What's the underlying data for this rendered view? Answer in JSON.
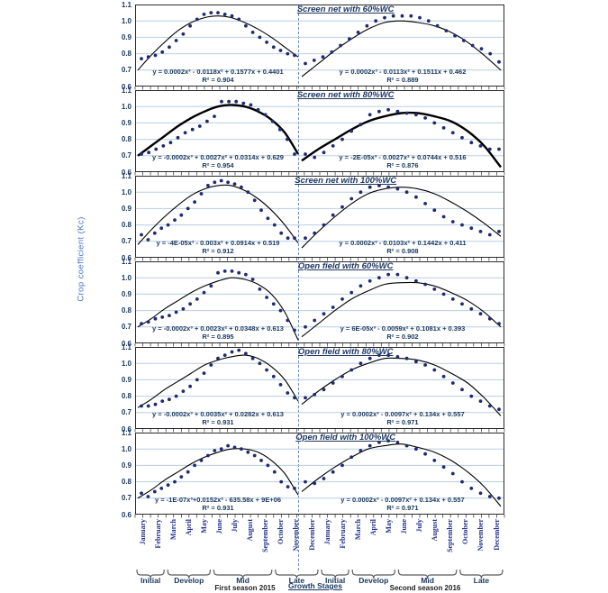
{
  "figure": {
    "y_axis_label": "Crop coefficient (Kc)",
    "y_ticks": [
      "1.1",
      "1.0",
      "0.9",
      "0.8",
      "0.7",
      "0.6"
    ],
    "months": [
      "January",
      "February",
      "March",
      "April",
      "May",
      "June",
      "July",
      "August",
      "September",
      "October",
      "November",
      "December"
    ],
    "growth_stages_label": "Growth Stages",
    "season1_caption": "First season 2015",
    "season2_caption": "Second season 2016",
    "stages": [
      {
        "label": "Initial",
        "season": 1,
        "from": 0,
        "to": 2
      },
      {
        "label": "Develop",
        "season": 1,
        "from": 2,
        "to": 5
      },
      {
        "label": "Mid",
        "season": 1,
        "from": 5,
        "to": 9
      },
      {
        "label": "Late",
        "season": 1,
        "from": 9,
        "to": 12
      },
      {
        "label": "Initial",
        "season": 2,
        "from": 12,
        "to": 14
      },
      {
        "label": "Develop",
        "season": 2,
        "from": 14,
        "to": 17
      },
      {
        "label": "Mid",
        "season": 2,
        "from": 17,
        "to": 21
      },
      {
        "label": "Late",
        "season": 2,
        "from": 21,
        "to": 24
      }
    ]
  },
  "colors": {
    "point": "#1F2A70",
    "curve": "#000000",
    "grid": "#B9CDE5",
    "panel_border": "#2B2B2B",
    "dashed_divider": "#6E89B8",
    "title_text": "#1F3864",
    "equation_text": "#17375E",
    "month_text": "#23318F",
    "tick_text": "#17375E",
    "stage_text": "#17375E",
    "caption_text": "#1F1F1F",
    "axis_label_text": "#4472C4",
    "bracket": "#595959"
  },
  "chart_data": [
    {
      "type": "scatter",
      "title": "Screen net with 60%WC",
      "ylim": [
        0.6,
        1.1
      ],
      "thick_curve": false,
      "fit_left": {
        "equation": "y = 0.0002x³ - 0.0118x² + 0.1577x + 0.4401",
        "r2": "R² = 0.904",
        "curve": [
          0.7,
          0.79,
          0.87,
          0.94,
          0.99,
          1.02,
          1.03,
          1.02,
          0.99,
          0.95,
          0.9,
          0.84,
          0.78
        ]
      },
      "fit_right": {
        "equation": "y = 0.0002x³ - 0.0113x² + 0.1511x + 0.462",
        "r2": "R² = 0.889",
        "curve": [
          0.66,
          0.74,
          0.82,
          0.89,
          0.95,
          0.99,
          1.0,
          0.99,
          0.97,
          0.93,
          0.87,
          0.79,
          0.7
        ]
      },
      "series": [
        {
          "name": "First season 2015",
          "values": [
            0.77,
            0.78,
            0.79,
            0.81,
            0.84,
            0.88,
            0.92,
            0.97,
            1.01,
            1.04,
            1.05,
            1.05,
            1.04,
            1.03,
            1.01,
            0.97,
            0.93,
            0.9,
            0.87,
            0.84,
            0.82,
            0.8,
            0.79
          ]
        },
        {
          "name": "Second season 2016",
          "values": [
            0.74,
            0.76,
            0.78,
            0.81,
            0.85,
            0.89,
            0.93,
            0.97,
            1.0,
            1.02,
            1.03,
            1.03,
            1.03,
            1.02,
            1.0,
            0.97,
            0.94,
            0.91,
            0.88,
            0.85,
            0.83,
            0.8,
            0.75
          ]
        }
      ]
    },
    {
      "type": "scatter",
      "title": "Screen net with 80%WC",
      "ylim": [
        0.6,
        1.1
      ],
      "thick_curve": true,
      "fit_left": {
        "equation": "y = -0.0002x³ + 0.0027x² + 0.0314x + 0.629",
        "r2": "R² = 0.954",
        "curve": [
          0.7,
          0.76,
          0.82,
          0.88,
          0.93,
          0.97,
          1.0,
          1.01,
          1.0,
          0.97,
          0.92,
          0.84,
          0.71
        ]
      },
      "fit_right": {
        "equation": "y = -2E-05x³ - 0.0027x² + 0.0744x + 0.516",
        "r2": "R² = 0.876",
        "curve": [
          0.67,
          0.74,
          0.8,
          0.86,
          0.91,
          0.94,
          0.96,
          0.96,
          0.94,
          0.91,
          0.85,
          0.76,
          0.63
        ]
      },
      "series": [
        {
          "name": "First season 2015",
          "values": [
            0.71,
            0.72,
            0.74,
            0.76,
            0.78,
            0.81,
            0.84,
            0.86,
            0.88,
            0.91,
            0.94,
            1.03,
            1.03,
            1.03,
            1.02,
            1.01,
            0.98,
            0.95,
            0.91,
            0.86,
            0.8,
            0.71
          ]
        },
        {
          "name": "Second season 2016",
          "values": [
            0.71,
            0.69,
            0.72,
            0.76,
            0.8,
            0.85,
            0.89,
            0.95,
            0.97,
            0.98,
            0.97,
            0.96,
            0.95,
            0.93,
            0.9,
            0.87,
            0.84,
            0.81,
            0.78,
            0.76,
            0.74,
            0.74
          ]
        }
      ]
    },
    {
      "type": "scatter",
      "title": "Screen net with 100%WC",
      "ylim": [
        0.6,
        1.1
      ],
      "thick_curve": false,
      "fit_left": {
        "equation": "y = -4E-05x³ - 0.003x² + 0.0914x + 0.519",
        "r2": "R² = 0.912",
        "curve": [
          0.68,
          0.77,
          0.85,
          0.92,
          0.98,
          1.02,
          1.04,
          1.04,
          1.01,
          0.96,
          0.89,
          0.8,
          0.69
        ]
      },
      "fit_right": {
        "equation": "y = 0.0002x³ - 0.0103x² + 0.1442x + 0.411",
        "r2": "R² = 0.908",
        "curve": [
          0.66,
          0.76,
          0.85,
          0.93,
          0.99,
          1.02,
          1.03,
          1.02,
          0.99,
          0.94,
          0.88,
          0.81,
          0.73
        ]
      },
      "series": [
        {
          "name": "First season 2015",
          "values": [
            0.74,
            0.71,
            0.75,
            0.78,
            0.8,
            0.83,
            0.86,
            0.9,
            0.94,
            0.99,
            1.04,
            1.06,
            1.07,
            1.06,
            1.05,
            1.03,
            1.0,
            0.95,
            0.89,
            0.84,
            0.8,
            0.75,
            0.72,
            0.72
          ]
        },
        {
          "name": "Second season 2016",
          "values": [
            0.72,
            0.75,
            0.8,
            0.86,
            0.91,
            0.96,
            1.0,
            1.03,
            1.04,
            1.03,
            1.02,
            1.0,
            0.97,
            0.93,
            0.89,
            0.85,
            0.82,
            0.8,
            0.78,
            0.76,
            0.74,
            0.76
          ]
        }
      ]
    },
    {
      "type": "scatter",
      "title": "Open field with 60%WC",
      "ylim": [
        0.6,
        1.1
      ],
      "thick_curve": false,
      "fit_left": {
        "equation": "y = -0.0002x³ + 0.0023x² + 0.0348x + 0.613",
        "r2": "R² = 0.895",
        "curve": [
          0.7,
          0.75,
          0.81,
          0.86,
          0.91,
          0.95,
          0.98,
          1.0,
          0.99,
          0.96,
          0.9,
          0.79,
          0.62
        ]
      },
      "fit_right": {
        "equation": "y = 6E-05x³ - 0.0059x² + 0.1081x + 0.393",
        "r2": "R² = 0.902",
        "curve": [
          0.64,
          0.72,
          0.8,
          0.87,
          0.92,
          0.96,
          0.97,
          0.97,
          0.95,
          0.91,
          0.86,
          0.79,
          0.7
        ]
      },
      "series": [
        {
          "name": "First season 2015",
          "values": [
            0.72,
            0.73,
            0.75,
            0.76,
            0.77,
            0.79,
            0.81,
            0.84,
            0.87,
            0.91,
            0.95,
            1.03,
            1.04,
            1.04,
            1.03,
            1.02,
            0.99,
            0.93,
            0.88,
            0.84,
            0.8,
            0.74,
            0.68
          ]
        },
        {
          "name": "Second season 2016",
          "values": [
            0.7,
            0.74,
            0.78,
            0.82,
            0.87,
            0.91,
            0.95,
            0.98,
            1.0,
            1.02,
            1.02,
            1.0,
            0.98,
            0.96,
            0.93,
            0.9,
            0.87,
            0.84,
            0.81,
            0.78,
            0.75,
            0.72
          ]
        }
      ]
    },
    {
      "type": "scatter",
      "title": "Open field with 80%WC",
      "ylim": [
        0.6,
        1.1
      ],
      "thick_curve": false,
      "fit_left": {
        "equation": "y = -0.0002x³ + 0.0035x² + 0.0282x + 0.613",
        "r2": "R² = 0.931",
        "curve": [
          0.73,
          0.78,
          0.84,
          0.89,
          0.94,
          0.99,
          1.02,
          1.04,
          1.05,
          1.03,
          0.98,
          0.9,
          0.77
        ]
      },
      "fit_right": {
        "equation": "y = 0.0002x³ - 0.0097x² + 0.134x + 0.557",
        "r2": "R² = 0.971",
        "curve": [
          0.75,
          0.83,
          0.9,
          0.96,
          1.0,
          1.03,
          1.03,
          1.02,
          0.99,
          0.94,
          0.88,
          0.79,
          0.68
        ]
      },
      "series": [
        {
          "name": "First season 2015",
          "values": [
            0.74,
            0.74,
            0.75,
            0.77,
            0.78,
            0.8,
            0.83,
            0.86,
            0.9,
            0.94,
            0.99,
            1.03,
            1.05,
            1.07,
            1.08,
            1.06,
            1.03,
            1.0,
            0.96,
            0.92,
            0.87,
            0.82,
            0.79
          ]
        },
        {
          "name": "Second season 2016",
          "values": [
            0.79,
            0.81,
            0.84,
            0.88,
            0.92,
            0.96,
            1.0,
            1.03,
            1.05,
            1.05,
            1.04,
            1.03,
            1.01,
            0.99,
            0.96,
            0.92,
            0.88,
            0.84,
            0.8,
            0.77,
            0.74,
            0.72
          ]
        }
      ]
    },
    {
      "type": "scatter",
      "title": "Open field with 100%WC",
      "ylim": [
        0.6,
        1.1
      ],
      "thick_curve": false,
      "fit_left": {
        "equation": "y = -1E-07x³+0.0152x² - 635.58x + 9E+06",
        "r2": "R² = 0.931",
        "curve": [
          0.7,
          0.75,
          0.81,
          0.86,
          0.91,
          0.95,
          0.98,
          1.0,
          1.0,
          0.98,
          0.93,
          0.85,
          0.72
        ]
      },
      "fit_right": {
        "equation": "y = 0.0002x³ - 0.0097x² + 0.134x + 0.557",
        "r2": "R² = 0.971",
        "curve": [
          0.74,
          0.82,
          0.89,
          0.95,
          1.0,
          1.02,
          1.03,
          1.01,
          0.98,
          0.93,
          0.86,
          0.77,
          0.65
        ]
      },
      "series": [
        {
          "name": "First season 2015",
          "values": [
            0.73,
            0.71,
            0.74,
            0.76,
            0.78,
            0.8,
            0.83,
            0.86,
            0.9,
            0.93,
            0.96,
            0.99,
            1.0,
            1.02,
            1.01,
            1.0,
            0.98,
            0.96,
            0.93,
            0.9,
            0.86,
            0.8,
            0.77,
            0.76
          ]
        },
        {
          "name": "Second season 2016",
          "values": [
            0.8,
            0.79,
            0.82,
            0.86,
            0.9,
            0.95,
            0.99,
            1.02,
            1.04,
            1.05,
            1.04,
            1.02,
            1.0,
            0.97,
            0.93,
            0.89,
            0.85,
            0.8,
            0.76,
            0.73,
            0.71,
            0.7
          ]
        }
      ]
    }
  ]
}
